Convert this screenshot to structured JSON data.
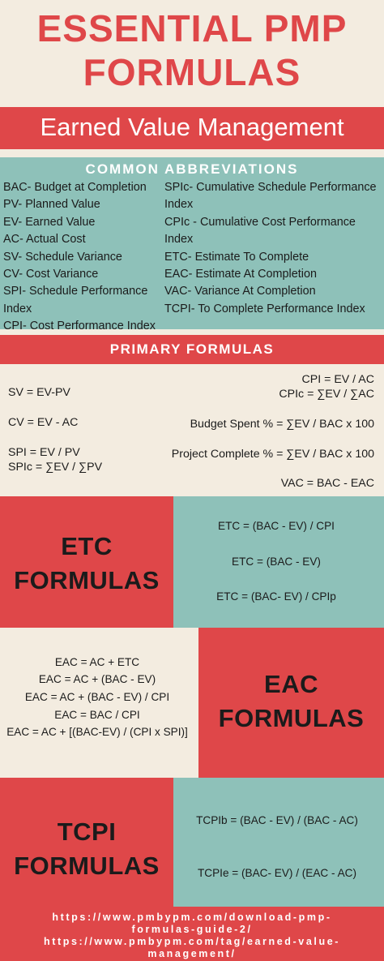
{
  "title": {
    "line1": "ESSENTIAL PMP",
    "line2": "FORMULAS"
  },
  "subtitle": "Earned Value Management",
  "abbreviations": {
    "heading": "COMMON ABBREVIATIONS",
    "left": [
      "BAC- Budget at Completion",
      "PV- Planned Value",
      "EV- Earned Value",
      "AC- Actual Cost",
      "SV- Schedule Variance",
      "CV- Cost Variance",
      "SPI- Schedule Performance Index",
      "CPI- Cost Performance Index"
    ],
    "right": [
      "SPIc- Cumulative Schedule Performance Index",
      "CPIc - Cumulative Cost Performance Index",
      "ETC- Estimate To Complete",
      "EAC- Estimate At Completion",
      "VAC- Variance At Completion",
      "TCPI- To Complete Performance Index"
    ]
  },
  "primary": {
    "heading": "PRIMARY FORMULAS",
    "sv": "SV = EV-PV",
    "cv": "CV = EV - AC",
    "spi": "SPI = EV / PV",
    "spic": "SPIc = ∑EV / ∑PV",
    "cpi": "CPI = EV / AC",
    "cpic": "CPIc = ∑EV / ∑AC",
    "budget_spent": "Budget Spent % = ∑EV / BAC x 100",
    "project_complete": "Project Complete % = ∑EV / BAC x 100",
    "vac": "VAC = BAC - EAC"
  },
  "etc": {
    "label_line1": "ETC",
    "label_line2": "FORMULAS",
    "formulas": [
      "ETC = (BAC - EV) / CPI",
      "ETC = (BAC - EV)",
      "ETC = (BAC- EV) / CPIp"
    ]
  },
  "eac": {
    "label_line1": "EAC",
    "label_line2": "FORMULAS",
    "formulas": [
      "EAC = AC + ETC",
      "EAC = AC + (BAC - EV)",
      "EAC = AC + (BAC - EV) / CPI",
      "EAC = BAC / CPI",
      "EAC = AC + [(BAC-EV) / (CPI x SPI)]"
    ]
  },
  "tcpi": {
    "label_line1": "TCPI",
    "label_line2": "FORMULAS",
    "formulas": [
      "TCPIb = (BAC - EV) / (BAC - AC)",
      "TCPIe = (BAC- EV) / (EAC - AC)"
    ]
  },
  "footer": {
    "line1": "https://www.pmbypm.com/download-pmp-",
    "line2": "formulas-guide-2/",
    "line3": "https://www.pmbypm.com/tag/earned-value-",
    "line4": "management/"
  },
  "colors": {
    "red": "#df4749",
    "teal": "#8ec1b9",
    "cream": "#f3ece0"
  }
}
